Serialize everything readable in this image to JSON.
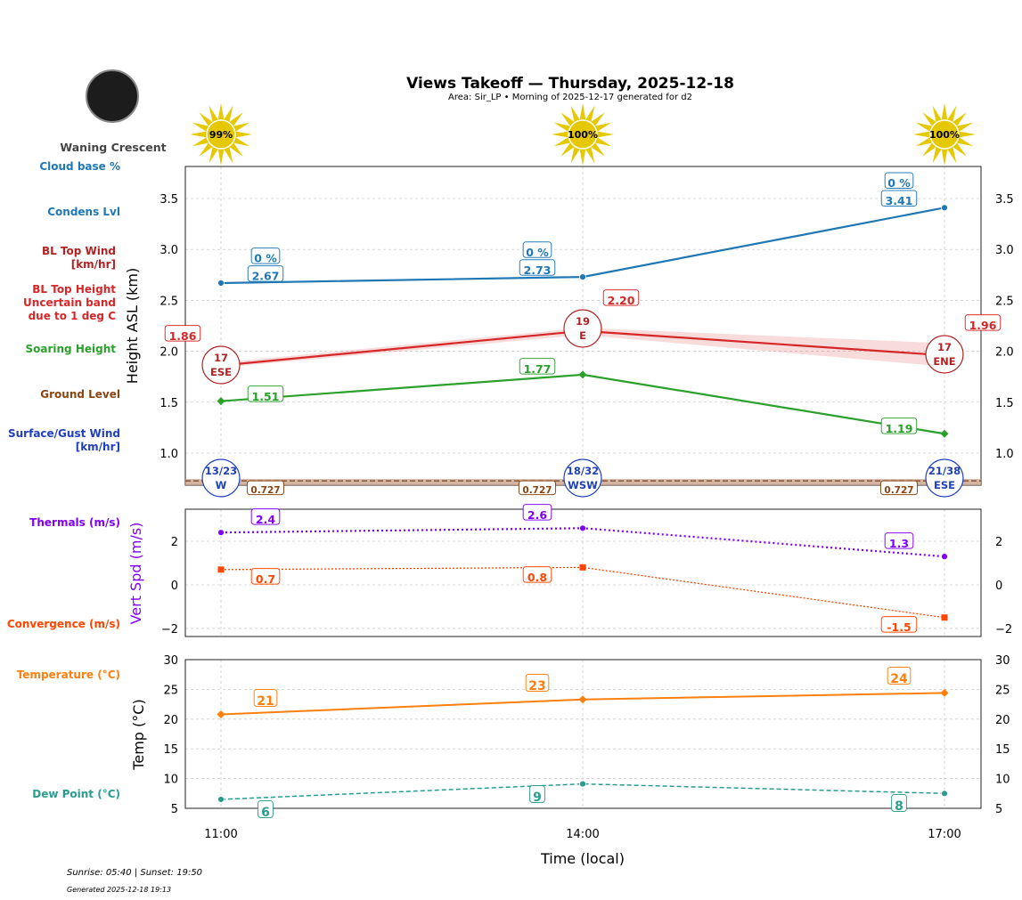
{
  "title": "Views Takeoff — Thursday, 2025-12-18",
  "subtitle": "Area: Sir_LP • Morning of 2025-12-17 generated for d2",
  "moon": {
    "phase": "Waning Crescent"
  },
  "sun": [
    "99%",
    "100%",
    "100%"
  ],
  "side_labels": {
    "cloud_base": "Cloud base %",
    "condens": "Condens Lvl",
    "bl_wind": "BL Top Wind\n[km/hr]",
    "bl_height": "BL Top Height\nUncertain band\ndue to 1 deg C",
    "soaring": "Soaring Height",
    "ground": "Ground Level",
    "surface_wind": "Surface/Gust Wind\n[km/hr]",
    "thermals": "Thermals (m/s)",
    "convergence": "Convergence (m/s)",
    "temperature": "Temperature (°C)",
    "dew": "Dew Point (°C)"
  },
  "footer": {
    "sun": "Sunrise: 05:40 | Sunset: 19:50",
    "generated": "Generated 2025-12-18 19:13"
  },
  "colors": {
    "cloud": "#1f77b4",
    "bl": "#d62728",
    "soar": "#2ca02c",
    "ground": "#8b4513",
    "surface": "#1f3fbf",
    "thermal": "#8000ff",
    "conv": "#ff4500",
    "temp": "#ff7f0e",
    "dew": "#2a9d8f"
  },
  "chart_data": [
    {
      "type": "line",
      "xlabel": "",
      "ylabel": "Height ASL (km)",
      "x": [
        "11:00",
        "14:00",
        "17:00"
      ],
      "ylim": [
        0.685,
        3.815
      ],
      "yticks": [
        "1.0",
        "1.5",
        "2.0",
        "2.5",
        "3.0",
        "3.5"
      ],
      "grid": true,
      "series": [
        {
          "name": "Condens Lvl",
          "values": [
            2.67,
            2.73,
            3.41
          ],
          "labels": [
            "2.67",
            "2.73",
            "3.41"
          ],
          "cloud_pct": [
            "0 %",
            "0 %",
            "0 %"
          ]
        },
        {
          "name": "BL Top Height",
          "values": [
            1.86,
            2.2,
            1.96
          ],
          "labels": [
            "1.86",
            "2.20",
            "1.96"
          ],
          "band_low": [
            1.84,
            2.16,
            1.85
          ],
          "band_high": [
            1.89,
            2.23,
            2.08
          ]
        },
        {
          "name": "BL Top Wind",
          "speed": [
            "17",
            "19",
            "17"
          ],
          "dir": [
            "ESE",
            "E",
            "ENE"
          ]
        },
        {
          "name": "Soaring Height",
          "values": [
            1.51,
            1.77,
            1.19
          ],
          "labels": [
            "1.51",
            "1.77",
            "1.19"
          ]
        },
        {
          "name": "Ground Level",
          "values": [
            0.727,
            0.727,
            0.727
          ],
          "labels": [
            "0.727",
            "0.727",
            "0.727"
          ]
        },
        {
          "name": "Surface/Gust Wind",
          "speed": [
            "13/23",
            "18/32",
            "21/38"
          ],
          "dir": [
            "W",
            "WSW",
            "ESE"
          ]
        }
      ]
    },
    {
      "type": "line",
      "ylabel": "Vert Spd (m/s)",
      "x": [
        "11:00",
        "14:00",
        "17:00"
      ],
      "ylim": [
        -2.37,
        3.47
      ],
      "yticks": [
        "−2",
        "0",
        "2"
      ],
      "grid": true,
      "series": [
        {
          "name": "Thermals (m/s)",
          "values": [
            2.4,
            2.6,
            1.3
          ],
          "labels": [
            "2.4",
            "2.6",
            "1.3"
          ]
        },
        {
          "name": "Convergence (m/s)",
          "values": [
            0.7,
            0.8,
            -1.5
          ],
          "labels": [
            "0.7",
            "0.8",
            "-1.5"
          ]
        }
      ]
    },
    {
      "type": "line",
      "ylabel": "Temp (°C)",
      "xlabel": "Time (local)",
      "x": [
        "11:00",
        "14:00",
        "17:00"
      ],
      "ylim": [
        5,
        30
      ],
      "yticks": [
        "5",
        "10",
        "15",
        "20",
        "25",
        "30"
      ],
      "grid": true,
      "series": [
        {
          "name": "Temperature (°C)",
          "values": [
            20.8,
            23.3,
            24.4
          ],
          "labels": [
            "21",
            "23",
            "24"
          ]
        },
        {
          "name": "Dew Point (°C)",
          "values": [
            6.5,
            9.1,
            7.5
          ],
          "labels": [
            "6",
            "9",
            "8"
          ]
        }
      ]
    }
  ]
}
